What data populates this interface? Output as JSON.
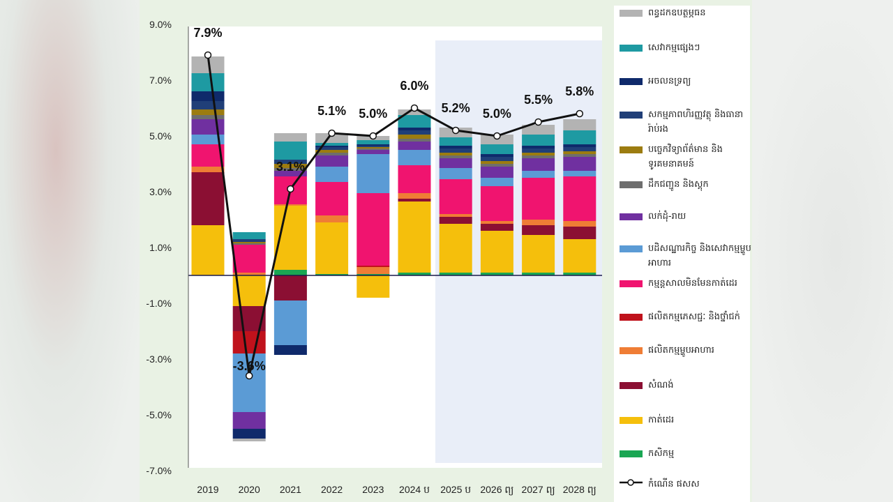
{
  "chart_data": {
    "type": "bar",
    "stacked": true,
    "categories": [
      "2019",
      "2020",
      "2021",
      "2022",
      "2023",
      "2024 ប",
      "2025 ប",
      "2026 ព្យ",
      "2027 ព្យ",
      "2028 ព្យ"
    ],
    "ylim": [
      -7.0,
      9.0
    ],
    "yticks": [
      "9.0%",
      "7.0%",
      "5.0%",
      "3.0%",
      "1.0%",
      "-1.0%",
      "-3.0%",
      "-5.0%",
      "-7.0%"
    ],
    "ytick_values": [
      9,
      7,
      5,
      3,
      1,
      -1,
      -3,
      -5,
      -7
    ],
    "projection_shading_from": "2025 ប",
    "legend_position": "right",
    "series": [
      {
        "name": "កសិកម្ម",
        "color": "#1aa653",
        "values": [
          0.0,
          0.0,
          0.2,
          0.05,
          0.05,
          0.1,
          0.1,
          0.1,
          0.1,
          0.1
        ]
      },
      {
        "name": "កាត់ដេរ",
        "color": "#f5bf0c",
        "values": [
          1.8,
          -1.1,
          2.3,
          1.85,
          -0.8,
          2.55,
          1.75,
          1.5,
          1.35,
          1.2
        ]
      },
      {
        "name": "សំណង់",
        "color": "#8b0f33",
        "values": [
          1.9,
          -0.9,
          -0.9,
          0.0,
          0.0,
          0.1,
          0.25,
          0.25,
          0.35,
          0.45
        ]
      },
      {
        "name": "ផលិតកម្មម្ហូបអាហារ",
        "color": "#ef7d35",
        "values": [
          0.2,
          0.1,
          0.05,
          0.25,
          0.25,
          0.2,
          0.1,
          0.1,
          0.2,
          0.2
        ]
      },
      {
        "name": "ផលិតកម្មភេសជ្ជៈ និងថ្នាំជក់",
        "color": "#c0121c",
        "values": [
          0.0,
          -0.8,
          0.0,
          0.0,
          0.05,
          0.0,
          0.0,
          0.0,
          0.0,
          0.0
        ]
      },
      {
        "name": "កម្មន្តសាលមិនមែនកាត់ដេរ",
        "color": "#f0146f",
        "values": [
          0.8,
          1.0,
          1.0,
          1.2,
          2.6,
          1.0,
          1.25,
          1.25,
          1.5,
          1.6
        ]
      },
      {
        "name": "បដិសណ្ឋារកិច្ច និងសេវាកម្មម្ហូបអាហារ",
        "color": "#5b9bd5",
        "values": [
          0.35,
          -2.1,
          -1.6,
          0.55,
          1.4,
          0.55,
          0.4,
          0.3,
          0.25,
          0.2
        ]
      },
      {
        "name": "លក់ដុំ-រាយ",
        "color": "#7030a0",
        "values": [
          0.55,
          -0.6,
          0.2,
          0.4,
          0.15,
          0.3,
          0.35,
          0.4,
          0.45,
          0.5
        ]
      },
      {
        "name": "ដឹកជញ្ជូន និងស្តុក",
        "color": "#6e6e6e",
        "values": [
          0.15,
          0.05,
          0.1,
          0.1,
          0.05,
          0.1,
          0.1,
          0.1,
          0.1,
          0.1
        ]
      },
      {
        "name": "បច្ចេកវិទ្យាព័ត៌មាន និងទូរគមនាគមន៍",
        "color": "#9c7c10",
        "values": [
          0.2,
          0.05,
          0.15,
          0.1,
          0.05,
          0.15,
          0.1,
          0.1,
          0.1,
          0.1
        ]
      },
      {
        "name": "សកម្មភាពហិរញ្ញវត្ថុ និងធានារ៉ាប់រង",
        "color": "#203f78",
        "values": [
          0.3,
          0.1,
          0.15,
          0.1,
          0.05,
          0.15,
          0.15,
          0.15,
          0.15,
          0.15
        ]
      },
      {
        "name": "អចលនទ្រព្យ",
        "color": "#0f2a6b",
        "values": [
          0.35,
          -0.35,
          -0.35,
          0.05,
          0.05,
          0.1,
          0.1,
          0.1,
          0.1,
          0.1
        ]
      },
      {
        "name": "សេវាកម្មផ្សេងៗ",
        "color": "#1e9aa2",
        "values": [
          0.65,
          0.25,
          0.65,
          0.1,
          0.15,
          0.45,
          0.3,
          0.35,
          0.4,
          0.5
        ]
      },
      {
        "name": "ពន្ធដកឧបត្ថម្ភធន",
        "color": "#b3b3b3",
        "values": [
          0.6,
          -0.1,
          0.3,
          0.35,
          0.15,
          0.2,
          0.35,
          0.35,
          0.35,
          0.4
        ]
      }
    ],
    "line": {
      "name": "កំណើន ផសស",
      "values": [
        7.9,
        -3.6,
        3.1,
        5.1,
        5.0,
        6.0,
        5.2,
        5.0,
        5.5,
        5.8
      ],
      "labels": [
        "7.9%",
        "-3.6%",
        "3.1%",
        "5.1%",
        "5.0%",
        "6.0%",
        "5.2%",
        "5.0%",
        "5.5%",
        "5.8%"
      ]
    }
  }
}
